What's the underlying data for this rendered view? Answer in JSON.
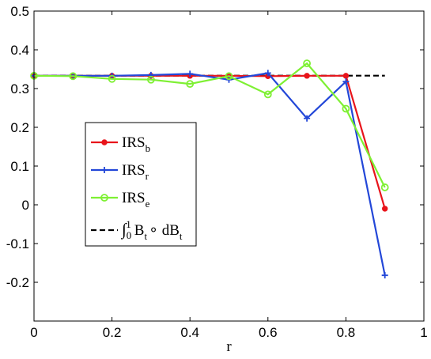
{
  "chart_data": {
    "type": "line",
    "title": "",
    "xlabel": "r",
    "ylabel": "",
    "xlim": [
      0,
      1
    ],
    "ylim": [
      -0.3,
      0.5
    ],
    "xticks": [
      0,
      0.2,
      0.4,
      0.6,
      0.8,
      1
    ],
    "xtick_labels": [
      "0",
      "0.2",
      "0.4",
      "0.6",
      "0.8",
      "1"
    ],
    "yticks": [
      -0.2,
      -0.1,
      0,
      0.1,
      0.2,
      0.3,
      0.4,
      0.5
    ],
    "ytick_labels": [
      "-0.2",
      "-0.1",
      "0",
      "0.1",
      "0.2",
      "0.3",
      "0.4",
      "0.5"
    ],
    "grid": false,
    "legend_position": "middle-left",
    "series": [
      {
        "name": "IRS_b",
        "label_main": "IRS",
        "label_sub": "b",
        "color": "#e8141b",
        "marker": "dot",
        "line_style": "solid",
        "x": [
          0,
          0.1,
          0.2,
          0.3,
          0.4,
          0.5,
          0.6,
          0.7,
          0.8,
          0.9
        ],
        "y": [
          0.333,
          0.333,
          0.333,
          0.333,
          0.333,
          0.333,
          0.332,
          0.333,
          0.333,
          -0.01
        ]
      },
      {
        "name": "IRS_r",
        "label_main": "IRS",
        "label_sub": "r",
        "color": "#2347d8",
        "marker": "plus",
        "line_style": "solid",
        "x": [
          0,
          0.1,
          0.2,
          0.3,
          0.4,
          0.5,
          0.6,
          0.7,
          0.8,
          0.9
        ],
        "y": [
          0.333,
          0.333,
          0.333,
          0.335,
          0.338,
          0.323,
          0.34,
          0.223,
          0.318,
          -0.182
        ]
      },
      {
        "name": "IRS_e",
        "label_main": "IRS",
        "label_sub": "e",
        "color": "#7ef033",
        "marker": "circle",
        "line_style": "solid",
        "x": [
          0,
          0.1,
          0.2,
          0.3,
          0.4,
          0.5,
          0.6,
          0.7,
          0.8,
          0.9
        ],
        "y": [
          0.333,
          0.332,
          0.325,
          0.323,
          0.312,
          0.332,
          0.285,
          0.365,
          0.248,
          0.045
        ]
      },
      {
        "name": "∫_0^1 B_t ∘ dB_t",
        "label_main": "∫",
        "label_sub": "0",
        "label_sup": "1",
        "label_rest_1": "B",
        "label_rest_1_sub": "t",
        "label_rest_2": "∘ dB",
        "label_rest_2_sub": "t",
        "color": "#000000",
        "marker": "none",
        "line_style": "dashed",
        "x": [
          0,
          0.9
        ],
        "y": [
          0.3333,
          0.3333
        ]
      }
    ]
  }
}
